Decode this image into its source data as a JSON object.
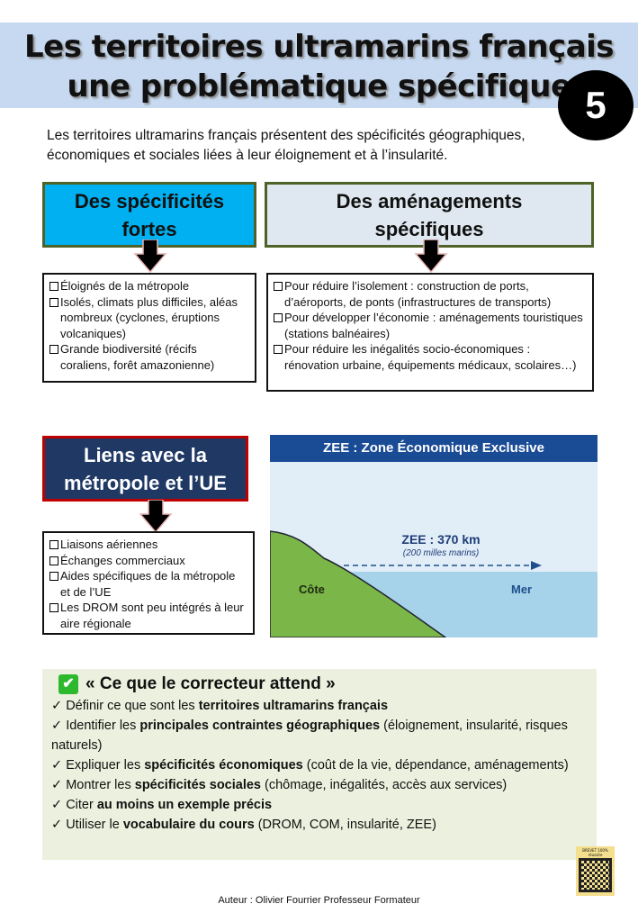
{
  "header": {
    "title_line1": "Les territoires ultramarins français",
    "title_line2": "une problématique spécifique",
    "badge_number": "5"
  },
  "intro": "Les territoires ultramarins français présentent des spécificités géographiques, économiques et sociales liées à leur éloignement et à l’insularité.",
  "box1": {
    "title": "Des spécificités fortes",
    "items": [
      "Éloignés de la métropole",
      "Isolés, climats plus difficiles, aléas nombreux (cyclones, éruptions volcaniques)",
      "Grande biodiversité (récifs coraliens, forêt amazonienne)"
    ]
  },
  "box2": {
    "title": "Des aménagements spécifiques",
    "items": [
      "Pour réduire l’isolement : construction de ports, d’aéroports, de ponts (infrastructures de transports)",
      "Pour développer l’économie : aménagements touristiques (stations balnéaires)",
      "Pour réduire les inégalités socio-économiques : rénovation urbaine, équipements médicaux, scolaires…)"
    ]
  },
  "box3": {
    "title": "Liens avec la métropole et l’UE",
    "items": [
      "Liaisons aériennes",
      "Échanges commerciaux",
      "Aides spécifiques de la métropole et de l’UE",
      "Les DROM sont peu intégrés à leur aire régionale"
    ]
  },
  "zee": {
    "title": "ZEE : Zone Économique Exclusive",
    "distance": "ZEE : 370 km",
    "distance_note": "(200 milles marins)",
    "land_label": "Côte",
    "sea_label": "Mer"
  },
  "criteria": {
    "title": "« Ce que le correcteur attend »",
    "items": [
      {
        "pre": "Définir ce que sont les ",
        "bold": "territoires ultramarins français",
        "post": ""
      },
      {
        "pre": "Identifier les ",
        "bold": "principales contraintes géographiques",
        "post": " (éloignement, insularité, risques naturels)"
      },
      {
        "pre": "Expliquer les ",
        "bold": "spécificités économiques",
        "post": " (coût de la vie, dépendance, aménagements)"
      },
      {
        "pre": "Montrer les ",
        "bold": "spécificités sociales",
        "post": " (chômage, inégalités, accès aux services)"
      },
      {
        "pre": "Citer ",
        "bold": "au moins un exemple précis",
        "post": ""
      },
      {
        "pre": "Utiliser le ",
        "bold": "vocabulaire du cours",
        "post": " (DROM, COM, insularité, ZEE)"
      }
    ]
  },
  "qr": {
    "label": "BREVET 100% réussite"
  },
  "footer": "Auteur : Olivier Fourrier Professeur Formateur",
  "colors": {
    "band": "#c6d9f0",
    "box1": "#00b0f0",
    "box2": "#dfe8f0",
    "box3": "#1f3864",
    "box3_border": "#c00000",
    "criteria_bg": "#ebf1de"
  }
}
